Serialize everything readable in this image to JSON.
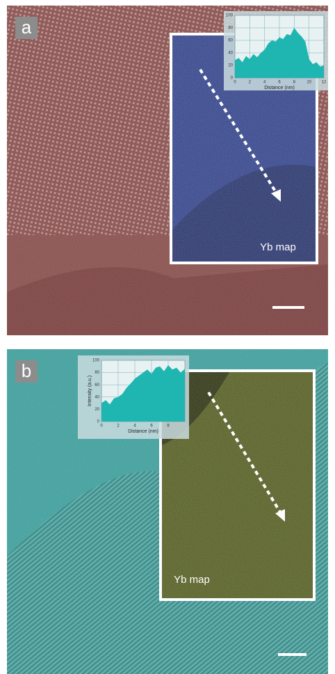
{
  "panels": [
    {
      "label": "a",
      "map_label": "Yb map",
      "profile": {
        "type": "area",
        "x_label": "Distance (nm)",
        "color": "#1fb5b0",
        "xlim": [
          0,
          12
        ],
        "ylim": [
          0,
          100
        ],
        "xticks": [
          0,
          2,
          4,
          6,
          8,
          10,
          12
        ],
        "yticks": [
          0,
          20,
          40,
          60,
          80,
          100
        ],
        "x": [
          0,
          0.5,
          1,
          1.5,
          2,
          2.5,
          3,
          3.5,
          4,
          4.5,
          5,
          5.5,
          6,
          6.5,
          7,
          7.5,
          8,
          8.5,
          9,
          9.5,
          10,
          10.5,
          11,
          11.5,
          12
        ],
        "values": [
          28,
          32,
          25,
          35,
          30,
          38,
          33,
          40,
          45,
          55,
          60,
          58,
          65,
          62,
          70,
          68,
          80,
          72,
          66,
          58,
          30,
          22,
          25,
          18,
          20
        ]
      }
    },
    {
      "label": "b",
      "map_label": "Yb map",
      "profile": {
        "type": "area",
        "x_label": "Distance (nm)",
        "y_label": "Intensity (a.u.)",
        "color": "#1fb5b0",
        "xlim": [
          0,
          10
        ],
        "ylim": [
          0,
          100
        ],
        "xticks": [
          0,
          2,
          4,
          6,
          8
        ],
        "yticks": [
          0,
          20,
          40,
          60,
          80,
          100
        ],
        "x": [
          0,
          0.5,
          1,
          1.5,
          2,
          2.5,
          3,
          3.5,
          4,
          4.5,
          5,
          5.5,
          6,
          6.5,
          7,
          7.5,
          8,
          8.5,
          9,
          9.5,
          10
        ],
        "values": [
          30,
          35,
          28,
          38,
          40,
          45,
          55,
          62,
          70,
          75,
          80,
          85,
          78,
          88,
          90,
          82,
          92,
          85,
          88,
          80,
          86
        ]
      }
    }
  ]
}
